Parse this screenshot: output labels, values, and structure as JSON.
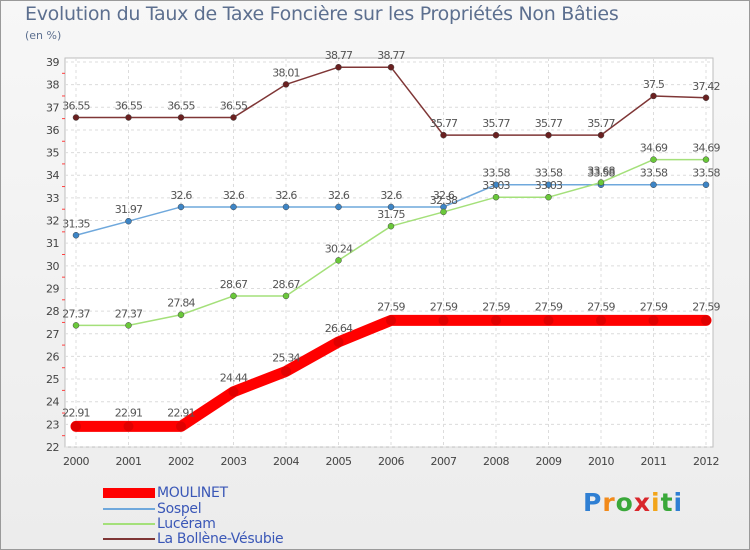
{
  "title": "Evolution du Taux de Taxe Foncière sur les Propriétés Non Bâties",
  "unit": "(en %)",
  "chart_data": {
    "type": "line",
    "x": [
      2000,
      2001,
      2002,
      2003,
      2004,
      2005,
      2006,
      2007,
      2008,
      2009,
      2010,
      2011,
      2012
    ],
    "ylim": [
      22,
      39
    ],
    "yticks": [
      22,
      23,
      24,
      25,
      26,
      27,
      28,
      29,
      30,
      31,
      32,
      33,
      34,
      35,
      36,
      37,
      38,
      39
    ],
    "grid": true,
    "series": [
      {
        "name": "MOULINET",
        "color": "#ff0000",
        "markerColor": "#e00000",
        "values": [
          22.91,
          22.91,
          22.91,
          24.44,
          25.34,
          26.64,
          27.59,
          27.59,
          27.59,
          27.59,
          27.59,
          27.59,
          27.59
        ],
        "labels": [
          "22.91",
          "22.91",
          "22.91",
          "24.44",
          "25.34",
          "26.64",
          "27.59",
          "27.59",
          "27.59",
          "27.59",
          "27.59",
          "27.59",
          "27.59"
        ]
      },
      {
        "name": "Sospel",
        "color": "#6fa8dc",
        "markerColor": "#3d85c6",
        "values": [
          31.35,
          31.97,
          32.6,
          32.6,
          32.6,
          32.6,
          32.6,
          32.6,
          33.58,
          33.58,
          33.58,
          33.58,
          33.58
        ],
        "labels": [
          "31.35",
          "31.97",
          "32.6",
          "32.6",
          "32.6",
          "32.6",
          "32.6",
          "32.6",
          "33.58",
          "33.58",
          "33.58",
          "33.58",
          "33.58"
        ]
      },
      {
        "name": "Lucéram",
        "color": "#a4e07a",
        "markerColor": "#6ac83a",
        "values": [
          27.37,
          27.37,
          27.84,
          28.67,
          28.67,
          30.24,
          31.75,
          32.38,
          33.03,
          33.03,
          33.68,
          34.69,
          34.69
        ],
        "labels": [
          "27.37",
          "27.37",
          "27.84",
          "28.67",
          "28.67",
          "30.24",
          "31.75",
          "32.38",
          "33.03",
          "33.03",
          "33.68",
          "34.69",
          "34.69"
        ]
      },
      {
        "name": "La Bollène-Vésubie",
        "color": "#7f3636",
        "markerColor": "#6a2020",
        "values": [
          36.55,
          36.55,
          36.55,
          36.55,
          38.01,
          38.77,
          38.77,
          35.77,
          35.77,
          35.77,
          35.77,
          37.5,
          37.42
        ],
        "labels": [
          "36.55",
          "36.55",
          "36.55",
          "36.55",
          "38.01",
          "38.77",
          "38.77",
          "35.77",
          "35.77",
          "35.77",
          "35.77",
          "37.5",
          "37.42"
        ]
      }
    ]
  },
  "legend": [
    {
      "label": "MOULINET",
      "color": "#ff0000"
    },
    {
      "label": "Sospel",
      "color": "#6fa8dc"
    },
    {
      "label": "Lucéram",
      "color": "#a4e07a"
    },
    {
      "label": "La Bollène-Vésubie",
      "color": "#7f3636"
    }
  ],
  "logo": {
    "text": "Proxiti",
    "letters": [
      "P",
      "r",
      "o",
      "x",
      "i",
      "t",
      "i"
    ],
    "colors": [
      "#2f7fd3",
      "#f28a1a",
      "#3aa83a",
      "#d9262b",
      "#f2a51a",
      "#3aa83a",
      "#2f7fd3"
    ]
  }
}
